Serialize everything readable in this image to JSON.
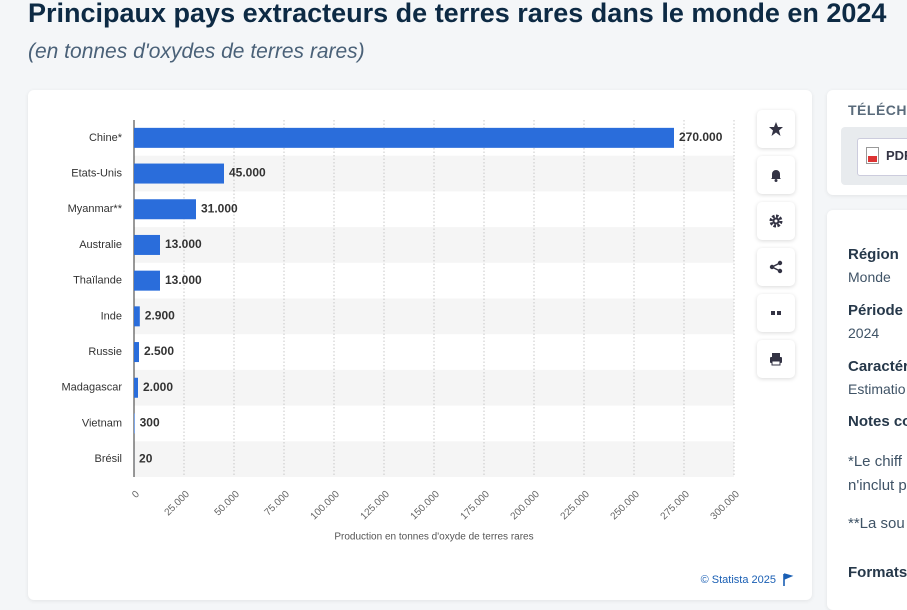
{
  "header": {
    "title": "Principaux pays extracteurs de terres rares dans le monde en 2024",
    "subtitle": "(en tonnes d'oxydes de terres rares)"
  },
  "chart_data": {
    "type": "hbar",
    "categories": [
      "Chine*",
      "Etats-Unis",
      "Myanmar**",
      "Australie",
      "Thaïlande",
      "Inde",
      "Russie",
      "Madagascar",
      "Vietnam",
      "Brésil"
    ],
    "values": [
      270000,
      45000,
      31000,
      13000,
      13000,
      2900,
      2500,
      2000,
      300,
      20
    ],
    "value_labels": [
      "270.000",
      "45.000",
      "31.000",
      "13.000",
      "13.000",
      "2.900",
      "2.500",
      "2.000",
      "300",
      "20"
    ],
    "color": "#2a6ddb",
    "xlim": [
      0,
      300000
    ],
    "xticks": [
      0,
      {
        "value": 25000,
        "label": "25.000"
      },
      {
        "value": 50000,
        "label": "50.000"
      },
      {
        "value": 75000,
        "label": "75.000"
      },
      {
        "value": 100000,
        "label": "100.000"
      },
      {
        "value": 125000,
        "label": "125.000"
      },
      {
        "value": 150000,
        "label": "150.000"
      },
      {
        "value": 175000,
        "label": "175.000"
      },
      {
        "value": 200000,
        "label": "200.000"
      },
      {
        "value": 225000,
        "label": "225.000"
      },
      {
        "value": 250000,
        "label": "250.000"
      },
      {
        "value": 275000,
        "label": "275.000"
      },
      {
        "value": 300000,
        "label": "300.000"
      }
    ],
    "xlabel": "Production en tonnes d'oxyde de terres rares",
    "grid": true,
    "credit": "© Statista 2025"
  },
  "sidebar": {
    "download_title": "TÉLÉCHA",
    "download_button": "PDF",
    "items": [
      {
        "label": "Région",
        "value": "Monde"
      },
      {
        "label": "Période",
        "value": "2024"
      },
      {
        "label": "Caractér",
        "value": "Estimatio"
      }
    ],
    "notes_title": "Notes co",
    "notes": [
      "*Le chiff",
      "n'inclut p",
      "**La sou"
    ],
    "formats_title": "Formats"
  }
}
